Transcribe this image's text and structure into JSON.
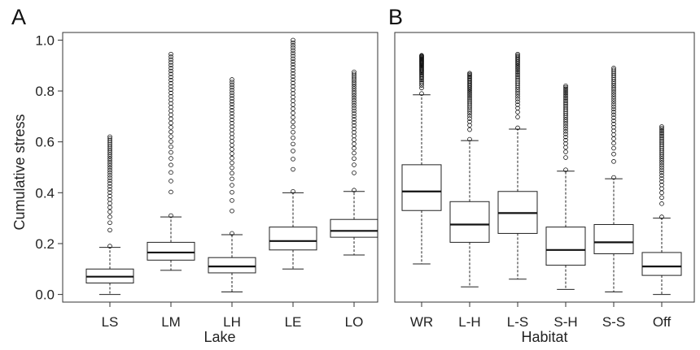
{
  "ylabel": "Cumulative stress",
  "chart_data": [
    {
      "type": "box",
      "panel": "A",
      "xlabel": "Lake",
      "ylabel": "Cumulative stress",
      "ylim": [
        -0.03,
        1.03
      ],
      "yticks": [
        0.0,
        0.2,
        0.4,
        0.6,
        0.8,
        1.0
      ],
      "ytick_labels": [
        "0.0",
        "0.2",
        "0.4",
        "0.6",
        "0.8",
        "1.0"
      ],
      "grid": false,
      "categories": [
        "LS",
        "LM",
        "LH",
        "LE",
        "LO"
      ],
      "boxes": [
        {
          "category": "LS",
          "min": 0.0,
          "q1": 0.045,
          "median": 0.07,
          "q3": 0.1,
          "max": 0.185,
          "outliers_from": 0.19,
          "outliers_to": 0.62
        },
        {
          "category": "LM",
          "min": 0.095,
          "q1": 0.135,
          "median": 0.165,
          "q3": 0.205,
          "max": 0.305,
          "outliers_from": 0.31,
          "outliers_to": 0.945
        },
        {
          "category": "LH",
          "min": 0.01,
          "q1": 0.085,
          "median": 0.11,
          "q3": 0.145,
          "max": 0.235,
          "outliers_from": 0.24,
          "outliers_to": 0.845
        },
        {
          "category": "LE",
          "min": 0.1,
          "q1": 0.175,
          "median": 0.21,
          "q3": 0.265,
          "max": 0.4,
          "outliers_from": 0.405,
          "outliers_to": 1.0
        },
        {
          "category": "LO",
          "min": 0.155,
          "q1": 0.225,
          "median": 0.25,
          "q3": 0.295,
          "max": 0.405,
          "outliers_from": 0.41,
          "outliers_to": 0.875
        }
      ]
    },
    {
      "type": "box",
      "panel": "B",
      "xlabel": "Habitat",
      "ylabel": "",
      "ylim": [
        -0.03,
        1.03
      ],
      "grid": false,
      "categories": [
        "WR",
        "L-H",
        "L-S",
        "S-H",
        "S-S",
        "Off"
      ],
      "boxes": [
        {
          "category": "WR",
          "min": 0.12,
          "q1": 0.33,
          "median": 0.405,
          "q3": 0.51,
          "max": 0.785,
          "outliers_from": 0.79,
          "outliers_to": 0.94
        },
        {
          "category": "L-H",
          "min": 0.03,
          "q1": 0.205,
          "median": 0.275,
          "q3": 0.365,
          "max": 0.605,
          "outliers_from": 0.61,
          "outliers_to": 0.87
        },
        {
          "category": "L-S",
          "min": 0.06,
          "q1": 0.24,
          "median": 0.32,
          "q3": 0.405,
          "max": 0.65,
          "outliers_from": 0.655,
          "outliers_to": 0.945
        },
        {
          "category": "S-H",
          "min": 0.02,
          "q1": 0.115,
          "median": 0.175,
          "q3": 0.265,
          "max": 0.485,
          "outliers_from": 0.49,
          "outliers_to": 0.82
        },
        {
          "category": "S-S",
          "min": 0.01,
          "q1": 0.16,
          "median": 0.205,
          "q3": 0.275,
          "max": 0.455,
          "outliers_from": 0.46,
          "outliers_to": 0.89
        },
        {
          "category": "Off",
          "min": 0.0,
          "q1": 0.075,
          "median": 0.11,
          "q3": 0.165,
          "max": 0.3,
          "outliers_from": 0.305,
          "outliers_to": 0.66
        }
      ]
    }
  ]
}
